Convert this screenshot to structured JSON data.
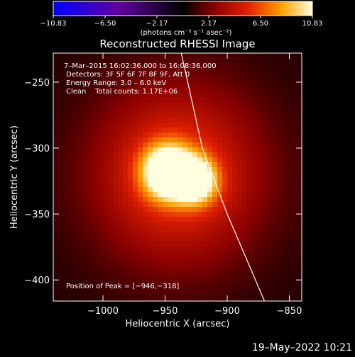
{
  "chart_data": {
    "type": "heatmap",
    "title": "Reconstructed RHESSI Image",
    "xlabel": "Heliocentric X (arcsec)",
    "ylabel": "Heliocentric Y (arcsec)",
    "xlim": [
      -1040,
      -840
    ],
    "ylim": [
      -416,
      -228
    ],
    "x_ticks": [
      -1000,
      -950,
      -900,
      -850
    ],
    "x_tick_labels": [
      "−1000",
      "−950",
      "−900",
      "−850"
    ],
    "y_ticks": [
      -250,
      -300,
      -350,
      -400
    ],
    "y_tick_labels": [
      "−250",
      "−300",
      "−350",
      "−400"
    ],
    "colorbar": {
      "min": -10.83,
      "max": 10.83,
      "tick_labels": [
        "−10.83",
        "−6.50",
        "−2.17",
        "2.17",
        "6.50",
        "10.83"
      ],
      "unit": "(photons cm⁻² s⁻¹ asec⁻²)"
    },
    "annotations": [
      "7–Mar–2015 16:02:36.000 to 16:08:36.000",
      "Detectors: 3F 5F 6F 7F 8F 9F, Att 0",
      "Energy Range: 3.0 – 6.0 keV",
      "Clean    Total counts: 1.17E+06",
      "Position of Peak = [−946,−318]"
    ],
    "peak": [
      -946,
      -318
    ],
    "limb_line": [
      [
        -937,
        -228
      ],
      [
        -920,
        -300
      ],
      [
        -900,
        -350
      ],
      [
        -870,
        -416
      ]
    ],
    "sources": [
      {
        "x": -948,
        "y": -318,
        "amplitude": 10.8,
        "width": 14
      },
      {
        "x": -925,
        "y": -325,
        "amplitude": 8.5,
        "width": 12
      },
      {
        "x": -940,
        "y": -320,
        "amplitude": 5.5,
        "width": 48
      }
    ]
  },
  "footer": {
    "date": "19–May–2022 10:21"
  }
}
